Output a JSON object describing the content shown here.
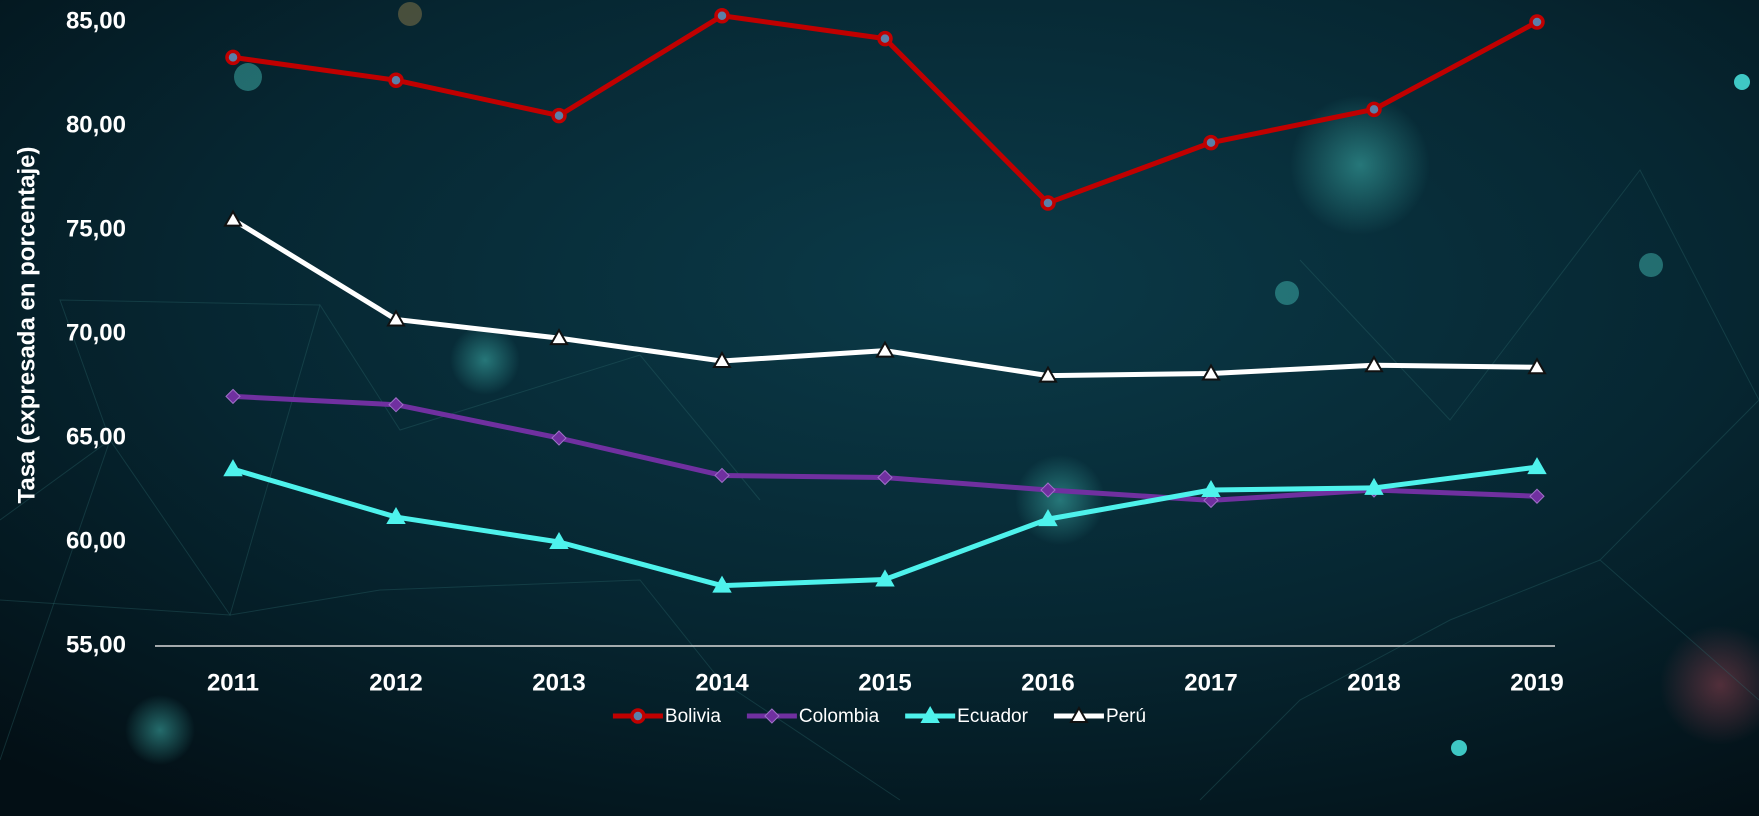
{
  "chart_data": {
    "type": "line",
    "y_label": "Tasa (expresada en porcentaje)",
    "categories": [
      "2011",
      "2012",
      "2013",
      "2014",
      "2015",
      "2016",
      "2017",
      "2018",
      "2019"
    ],
    "ylim": [
      55,
      85
    ],
    "yticks": [
      {
        "value": 55,
        "label": "55,00"
      },
      {
        "value": 60,
        "label": "60,00"
      },
      {
        "value": 65,
        "label": "65,00"
      },
      {
        "value": 70,
        "label": "70,00"
      },
      {
        "value": 75,
        "label": "75,00"
      },
      {
        "value": 80,
        "label": "80,00"
      },
      {
        "value": 85,
        "label": "85,00"
      }
    ],
    "grid": false,
    "legend": "bottom",
    "series": [
      {
        "name": "Bolivia",
        "color": "#c00000",
        "marker": "circle",
        "values": [
          83.3,
          82.2,
          80.5,
          85.3,
          84.2,
          76.3,
          79.2,
          80.8,
          85.0
        ]
      },
      {
        "name": "Colombia",
        "color": "#7030a0",
        "marker": "diamond",
        "values": [
          67.0,
          66.6,
          65.0,
          63.2,
          63.1,
          62.5,
          62.0,
          62.5,
          62.2
        ]
      },
      {
        "name": "Ecuador",
        "color": "#4ef2ec",
        "marker": "triangle",
        "values": [
          63.5,
          61.2,
          60.0,
          57.9,
          58.2,
          61.1,
          62.5,
          62.6,
          63.6
        ]
      },
      {
        "name": "Perú",
        "color": "#ffffff",
        "marker": "triangle",
        "values": [
          75.5,
          70.7,
          69.8,
          68.7,
          69.2,
          68.0,
          68.1,
          68.5,
          68.4
        ]
      }
    ]
  }
}
